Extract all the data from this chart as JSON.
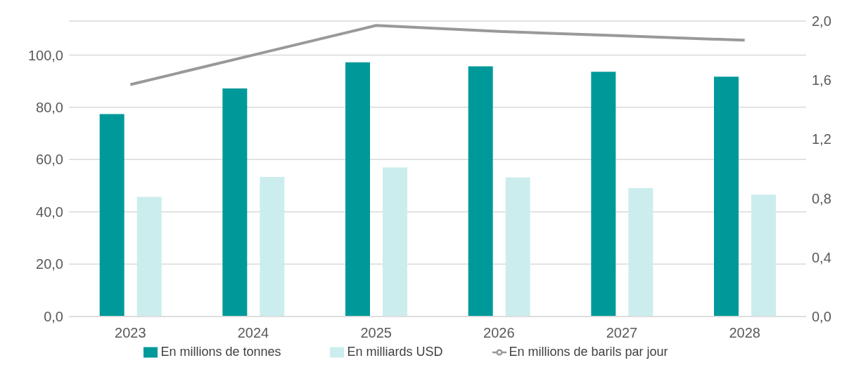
{
  "chart_data": {
    "type": "bar",
    "categories": [
      "2023",
      "2024",
      "2025",
      "2026",
      "2027",
      "2028"
    ],
    "series": [
      {
        "name": "En millions de tonnes",
        "color": "#009999",
        "values": [
          77.4,
          87.2,
          97.2,
          95.7,
          93.6,
          91.7
        ]
      },
      {
        "name": "En milliards USD",
        "color": "#cceded",
        "values": [
          45.7,
          53.4,
          57.0,
          53.2,
          49.1,
          46.6
        ]
      },
      {
        "name": "En millions de barils par jour",
        "type": "line",
        "axis": "y2",
        "color": "#999999",
        "values": [
          1.57,
          1.77,
          1.97,
          1.93,
          1.9,
          1.87
        ]
      }
    ],
    "ylim": [
      0,
      113
    ],
    "yticks": [
      {
        "value": 0,
        "label": "0,0"
      },
      {
        "value": 20,
        "label": "20,0"
      },
      {
        "value": 40,
        "label": "40,0"
      },
      {
        "value": 60,
        "label": "60,0"
      },
      {
        "value": 80,
        "label": "80,0"
      },
      {
        "value": 100,
        "label": "100,0"
      }
    ],
    "y2lim": [
      0,
      2
    ],
    "y2ticks": [
      {
        "value": 0,
        "label": "0,0"
      },
      {
        "value": 0.4,
        "label": "0,4"
      },
      {
        "value": 0.8,
        "label": "0,8"
      },
      {
        "value": 1.2,
        "label": "1,2"
      },
      {
        "value": 1.6,
        "label": "1,6"
      },
      {
        "value": 2,
        "label": "2,0"
      }
    ],
    "grid": "y",
    "legend": "bottom",
    "marker": "none"
  }
}
